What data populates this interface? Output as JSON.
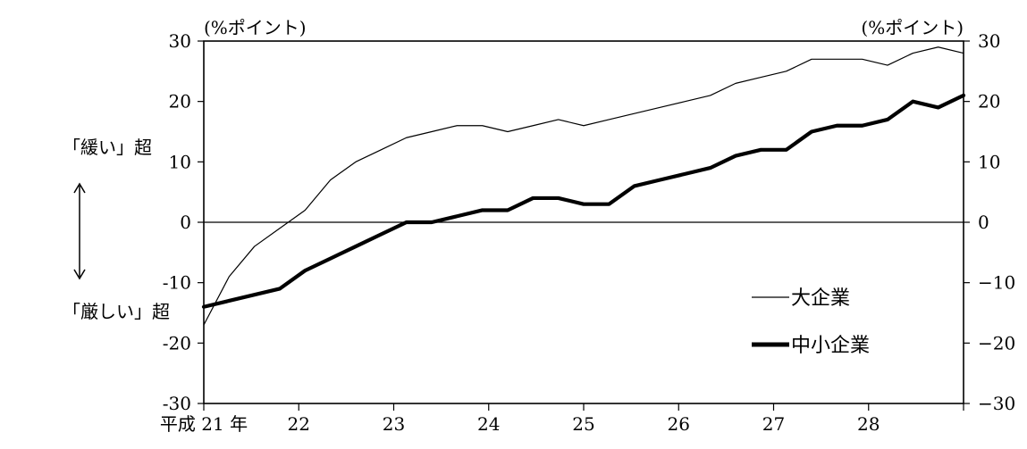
{
  "chart_data": {
    "type": "line",
    "x_tick_labels": [
      "平成 21 年",
      "22",
      "23",
      "24",
      "25",
      "26",
      "27",
      "28"
    ],
    "x": [
      "21-Q1",
      "21-Q2",
      "21-Q3",
      "21-Q4",
      "22-Q1",
      "22-Q2",
      "22-Q3",
      "22-Q4",
      "23-Q1",
      "23-Q2",
      "23-Q3",
      "23-Q4",
      "24-Q1",
      "24-Q2",
      "24-Q3",
      "24-Q4",
      "25-Q1",
      "25-Q2",
      "25-Q3",
      "25-Q4",
      "26-Q1",
      "26-Q2",
      "26-Q3",
      "26-Q4",
      "27-Q1",
      "27-Q2",
      "27-Q3",
      "27-Q4",
      "28-Q1",
      "28-Q2",
      "28-Q3"
    ],
    "series": [
      {
        "name": "大企業",
        "line_style": "thin",
        "values": [
          -17,
          -9,
          -4,
          -1,
          2,
          7,
          10,
          12,
          14,
          15,
          16,
          16,
          15,
          16,
          17,
          16,
          17,
          18,
          19,
          20,
          21,
          23,
          24,
          25,
          27,
          27,
          27,
          26,
          28,
          29,
          28
        ]
      },
      {
        "name": "中小企業",
        "line_style": "thick",
        "values": [
          -14,
          -13,
          -12,
          -11,
          -8,
          -6,
          -4,
          -2,
          0,
          0,
          1,
          2,
          2,
          4,
          4,
          3,
          3,
          6,
          7,
          8,
          9,
          11,
          12,
          12,
          15,
          16,
          16,
          17,
          20,
          19,
          21
        ]
      }
    ],
    "ylim": [
      -30,
      30
    ],
    "y_ticks": [
      -30,
      -20,
      -10,
      0,
      10,
      20,
      30
    ],
    "y_tick_labels_left": [
      "30",
      "20",
      "10",
      "0",
      "-10",
      "-20",
      "-30"
    ],
    "y_tick_labels_right": [
      "30",
      "20",
      "10",
      "0",
      "−10",
      "−20",
      "−30"
    ],
    "y_unit_left": "(%ポイント)",
    "y_unit_right": "(%ポイント)",
    "zero_line": true,
    "grid": false,
    "legend_position": "bottom-right",
    "annotation_upper": "「緩い」超",
    "annotation_lower": "「厳しい」超",
    "annotation_arrow": "↑↓"
  }
}
